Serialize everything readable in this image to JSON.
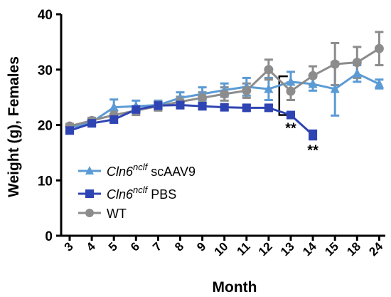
{
  "chart_data": {
    "type": "line",
    "xlabel": "Month",
    "ylabel": "Weight (g), Females",
    "ylim": [
      0,
      40
    ],
    "yticks": [
      "0",
      "10",
      "20",
      "30",
      "40"
    ],
    "categories": [
      "3",
      "4",
      "5",
      "6",
      "7",
      "8",
      "9",
      "10",
      "11",
      "12",
      "13",
      "14",
      "15",
      "18",
      "24"
    ],
    "grid": false,
    "legend_position": "bottom-left",
    "series": [
      {
        "name_main": "Cln6",
        "name_sup": "nclf",
        "name_suffix": "scAAV9",
        "marker": "triangle",
        "color": "#5b9bd5",
        "values": [
          19.5,
          20.5,
          23.2,
          23.4,
          23.6,
          24.9,
          25.6,
          26.3,
          26.9,
          26.5,
          27.8,
          27.4,
          26.5,
          29.3,
          27.4
        ],
        "errors": [
          0.6,
          0.6,
          1.4,
          1.0,
          0.8,
          1.0,
          1.2,
          1.2,
          1.6,
          2.0,
          1.8,
          1.2,
          4.8,
          1.5,
          0.8
        ]
      },
      {
        "name_main": "Cln6",
        "name_sup": "nclf",
        "name_suffix": "PBS",
        "marker": "square",
        "color": "#2f44b3",
        "values": [
          19.0,
          20.3,
          21.0,
          22.8,
          23.5,
          23.6,
          23.4,
          23.2,
          23.1,
          23.1,
          21.8,
          18.2,
          null,
          null,
          null
        ],
        "errors": [
          0.5,
          0.5,
          0.6,
          0.6,
          0.6,
          0.6,
          0.6,
          0.5,
          0.5,
          0.5,
          0.4,
          0.8,
          null,
          null,
          null
        ]
      },
      {
        "name_main": "WT",
        "name_sup": "",
        "name_suffix": "",
        "marker": "circle",
        "color": "#8c8c8c",
        "values": [
          19.8,
          20.8,
          21.8,
          22.6,
          23.4,
          24.2,
          24.9,
          25.6,
          26.2,
          30.0,
          26.1,
          28.9,
          31.0,
          31.3,
          33.8
        ],
        "errors": [
          0.4,
          0.5,
          0.8,
          0.8,
          0.8,
          0.9,
          1.0,
          1.2,
          1.3,
          1.8,
          1.6,
          1.7,
          3.8,
          2.8,
          3.0
        ]
      }
    ],
    "annotations": [
      {
        "text": "**",
        "x": "13"
      },
      {
        "text": "**",
        "x": "14"
      }
    ]
  }
}
